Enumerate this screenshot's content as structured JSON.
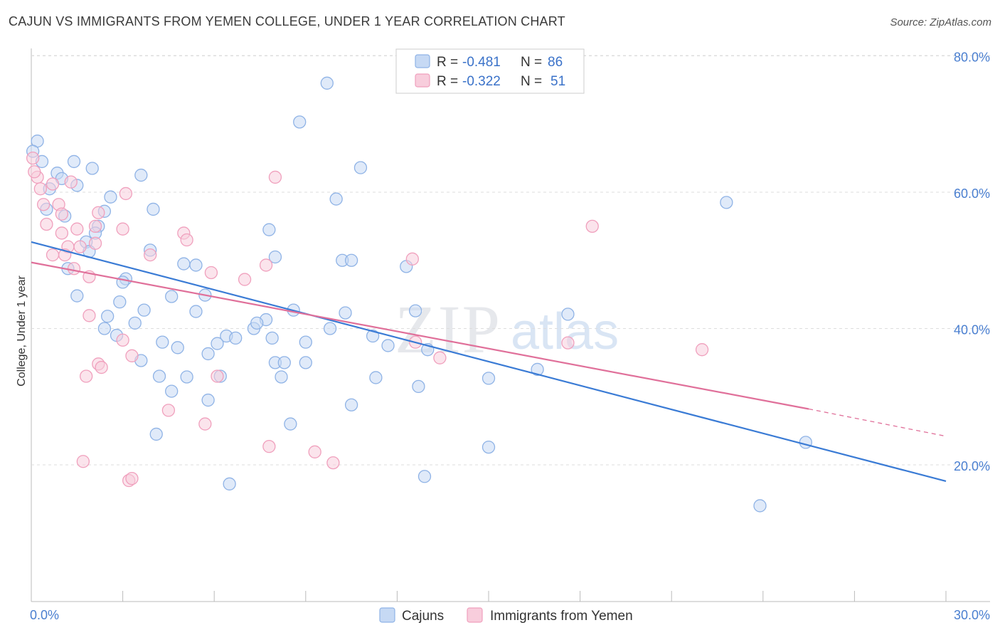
{
  "title": "CAJUN VS IMMIGRANTS FROM YEMEN COLLEGE, UNDER 1 YEAR CORRELATION CHART",
  "source": "Source: ZipAtlas.com",
  "watermark": {
    "zip": "ZIP",
    "atlas": "atlas"
  },
  "legend": {
    "rows": [
      {
        "r_label": "R =",
        "r_value": "-0.481",
        "n_label": "N =",
        "n_value": "86",
        "color": "#8fb3e6",
        "fill": "#c6d9f4"
      },
      {
        "r_label": "R =",
        "r_value": "-0.322",
        "n_label": "N =",
        "n_value": "51",
        "color": "#f0a0bd",
        "fill": "#f8cddc"
      }
    ]
  },
  "bottom_legend": [
    {
      "label": "Cajuns",
      "color": "#8fb3e6",
      "fill": "#c6d9f4"
    },
    {
      "label": "Immigrants from Yemen",
      "color": "#f0a0bd",
      "fill": "#f8cddc"
    }
  ],
  "chart_data": {
    "type": "scatter",
    "title": "CAJUN VS IMMIGRANTS FROM YEMEN COLLEGE, UNDER 1 YEAR CORRELATION CHART",
    "xlabel": "",
    "ylabel": "College, Under 1 year",
    "xlim": [
      0,
      30
    ],
    "ylim": [
      0,
      82
    ],
    "x_tick_labels": [
      "0.0%",
      "30.0%"
    ],
    "y_ticks": [
      20,
      40,
      60,
      80
    ],
    "y_tick_labels": [
      "20.0%",
      "40.0%",
      "60.0%",
      "80.0%"
    ],
    "grid": "horizontal dashed",
    "legend_position": "top-center",
    "series": [
      {
        "name": "Cajuns",
        "color": "#3a7bd5",
        "point_fill": "#c6d9f4",
        "point_stroke": "#8fb3e6",
        "trend": {
          "x": [
            0,
            30
          ],
          "y": [
            52.7,
            17.6
          ]
        },
        "points": [
          [
            0.2,
            67.5
          ],
          [
            0.35,
            64.5
          ],
          [
            0.85,
            62.8
          ],
          [
            1.4,
            64.5
          ],
          [
            2.0,
            63.5
          ],
          [
            1.5,
            61.0
          ],
          [
            0.6,
            60.5
          ],
          [
            2.6,
            59.3
          ],
          [
            3.6,
            62.5
          ],
          [
            0.5,
            57.5
          ],
          [
            1.1,
            56.5
          ],
          [
            2.4,
            57.2
          ],
          [
            4.0,
            57.5
          ],
          [
            2.2,
            55.0
          ],
          [
            2.1,
            54.0
          ],
          [
            1.8,
            52.7
          ],
          [
            1.9,
            51.3
          ],
          [
            3.9,
            51.5
          ],
          [
            1.2,
            48.8
          ],
          [
            5.0,
            49.5
          ],
          [
            5.4,
            49.3
          ],
          [
            3.1,
            47.3
          ],
          [
            3.0,
            46.8
          ],
          [
            1.5,
            44.8
          ],
          [
            4.6,
            44.7
          ],
          [
            5.7,
            44.9
          ],
          [
            2.9,
            43.9
          ],
          [
            3.7,
            42.7
          ],
          [
            5.4,
            42.5
          ],
          [
            2.5,
            41.8
          ],
          [
            3.4,
            40.8
          ],
          [
            2.8,
            39.0
          ],
          [
            6.4,
            38.9
          ],
          [
            4.3,
            38.0
          ],
          [
            4.8,
            37.2
          ],
          [
            5.8,
            36.3
          ],
          [
            6.1,
            37.8
          ],
          [
            6.7,
            38.6
          ],
          [
            7.3,
            40.0
          ],
          [
            7.9,
            38.6
          ],
          [
            7.7,
            41.3
          ],
          [
            7.4,
            40.8
          ],
          [
            8.0,
            35.0
          ],
          [
            8.3,
            35.0
          ],
          [
            9.0,
            35.0
          ],
          [
            4.2,
            33.0
          ],
          [
            5.1,
            32.9
          ],
          [
            8.2,
            32.9
          ],
          [
            4.6,
            30.8
          ],
          [
            5.8,
            29.5
          ],
          [
            8.5,
            26.0
          ],
          [
            4.1,
            24.5
          ],
          [
            6.5,
            17.2
          ],
          [
            7.8,
            54.5
          ],
          [
            8.0,
            50.5
          ],
          [
            10.2,
            50.0
          ],
          [
            10.5,
            50.0
          ],
          [
            12.3,
            49.1
          ],
          [
            8.6,
            42.7
          ],
          [
            9.8,
            40.0
          ],
          [
            10.3,
            42.3
          ],
          [
            11.2,
            38.9
          ],
          [
            11.7,
            37.5
          ],
          [
            13.0,
            36.9
          ],
          [
            12.6,
            42.6
          ],
          [
            9.0,
            38.0
          ],
          [
            11.3,
            32.8
          ],
          [
            12.7,
            31.5
          ],
          [
            10.5,
            28.8
          ],
          [
            15.0,
            32.7
          ],
          [
            16.6,
            34.0
          ],
          [
            17.6,
            42.1
          ],
          [
            15.0,
            22.6
          ],
          [
            12.9,
            18.3
          ],
          [
            22.8,
            58.5
          ],
          [
            25.4,
            23.3
          ],
          [
            23.9,
            14.0
          ],
          [
            9.7,
            76.0
          ],
          [
            8.8,
            70.3
          ],
          [
            10.8,
            63.6
          ],
          [
            10.0,
            59.0
          ],
          [
            0.05,
            66.0
          ],
          [
            6.2,
            33.0
          ],
          [
            3.6,
            35.3
          ],
          [
            1.0,
            62.0
          ],
          [
            2.4,
            40.0
          ]
        ]
      },
      {
        "name": "Immigrants from Yemen",
        "color": "#e0709a",
        "point_fill": "#f8cddc",
        "point_stroke": "#f0a0bd",
        "trend": {
          "x": [
            0,
            25.5
          ],
          "y": [
            49.7,
            28.2
          ]
        },
        "trend_dashed": {
          "x": [
            25.5,
            30
          ],
          "y": [
            28.2,
            24.2
          ]
        },
        "points": [
          [
            0.05,
            65.0
          ],
          [
            0.2,
            62.2
          ],
          [
            0.3,
            60.5
          ],
          [
            0.7,
            61.2
          ],
          [
            1.3,
            61.5
          ],
          [
            3.1,
            59.8
          ],
          [
            0.4,
            58.2
          ],
          [
            0.9,
            58.2
          ],
          [
            2.2,
            57.0
          ],
          [
            1.0,
            56.8
          ],
          [
            0.5,
            55.3
          ],
          [
            3.0,
            54.6
          ],
          [
            1.5,
            54.6
          ],
          [
            1.0,
            54.0
          ],
          [
            5.0,
            54.0
          ],
          [
            2.1,
            52.5
          ],
          [
            1.2,
            52.0
          ],
          [
            5.1,
            53.0
          ],
          [
            0.7,
            50.8
          ],
          [
            1.1,
            50.8
          ],
          [
            3.9,
            50.8
          ],
          [
            1.4,
            48.8
          ],
          [
            5.9,
            48.2
          ],
          [
            7.7,
            49.3
          ],
          [
            1.9,
            47.6
          ],
          [
            7.0,
            47.2
          ],
          [
            8.0,
            62.2
          ],
          [
            12.5,
            50.2
          ],
          [
            18.4,
            55.0
          ],
          [
            1.9,
            41.9
          ],
          [
            3.0,
            38.3
          ],
          [
            12.6,
            38.0
          ],
          [
            17.6,
            37.9
          ],
          [
            22.0,
            36.9
          ],
          [
            3.3,
            36.0
          ],
          [
            2.2,
            34.8
          ],
          [
            2.3,
            34.3
          ],
          [
            13.4,
            35.7
          ],
          [
            1.8,
            33.0
          ],
          [
            6.1,
            33.0
          ],
          [
            4.5,
            28.0
          ],
          [
            5.7,
            26.0
          ],
          [
            7.8,
            22.7
          ],
          [
            9.3,
            21.9
          ],
          [
            9.9,
            20.3
          ],
          [
            1.7,
            20.5
          ],
          [
            3.2,
            17.7
          ],
          [
            3.3,
            18.0
          ],
          [
            0.1,
            63.0
          ],
          [
            2.1,
            55.0
          ],
          [
            1.6,
            52.0
          ]
        ]
      }
    ]
  }
}
